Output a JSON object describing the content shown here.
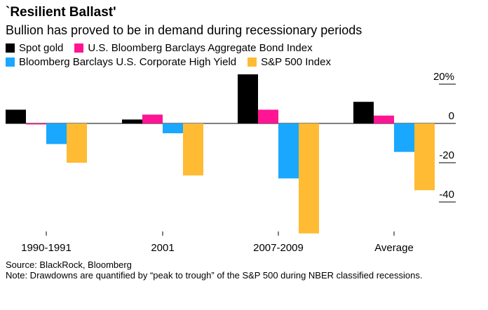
{
  "title": "`Resilient Ballast'",
  "subtitle": "Bullion has proved to be in demand during recessionary periods",
  "colors": {
    "spot_gold": "#000000",
    "agg_bond": "#ff1493",
    "high_yield": "#1aa8ff",
    "sp500": "#ffbb33"
  },
  "chart_data": {
    "type": "bar",
    "categories": [
      "1990-1991",
      "2001",
      "2007-2009",
      "Average"
    ],
    "series": [
      {
        "name": "Spot gold",
        "color": "#000000",
        "values": [
          7,
          2,
          25,
          11
        ]
      },
      {
        "name": "U.S. Bloomberg Barclays Aggregate Bond Index",
        "color": "#ff1493",
        "values": [
          -0.5,
          4.5,
          7,
          4
        ]
      },
      {
        "name": "Bloomberg Barclays U.S. Corporate High Yield",
        "color": "#1aa8ff",
        "values": [
          -10.5,
          -5,
          -28,
          -14.5
        ]
      },
      {
        "name": "S&P 500 Index",
        "color": "#ffbb33",
        "values": [
          -20,
          -26.5,
          -56,
          -34
        ]
      }
    ],
    "yticks": [
      {
        "value": 20,
        "label": "20%"
      },
      {
        "value": 0,
        "label": "0"
      },
      {
        "value": -20,
        "label": "-20"
      },
      {
        "value": -40,
        "label": "-40"
      }
    ],
    "ylim": [
      -56,
      26
    ],
    "legend_position": "top"
  },
  "source": "Source: BlackRock, Bloomberg",
  "note": "Note: Drawdowns are quantified by “peak to trough” of the S&P 500 during NBER classified recessions."
}
